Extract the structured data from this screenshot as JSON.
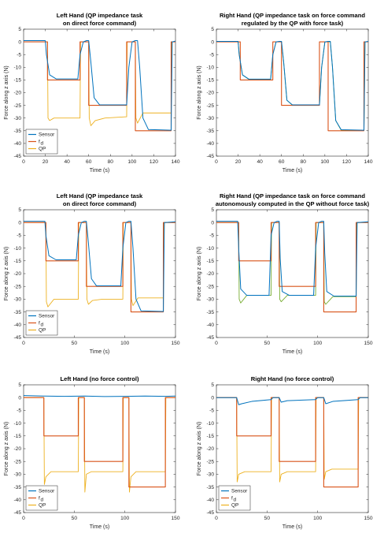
{
  "chart_data": [
    {
      "type": "line",
      "title": "Left Hand (QP impedance task",
      "subtitle": "on direct force command)",
      "xlabel": "Time (s)",
      "ylabel": "Force along z axis (N)",
      "xlim": [
        0,
        140
      ],
      "ylim": [
        -45,
        5
      ],
      "xticks": [
        "0",
        "20",
        "40",
        "60",
        "80",
        "100",
        "120",
        "140"
      ],
      "yticks": [
        "5",
        "0",
        "-5",
        "-10",
        "-15",
        "-20",
        "-25",
        "-30",
        "-35",
        "-40",
        "-45"
      ],
      "grid": false,
      "legend_position": "bottom-left",
      "legend": [
        "Sensor",
        "f",
        "QP"
      ],
      "legend_sub": "d",
      "colors": {
        "sensor": "#0072BD",
        "fd": "#D95319",
        "qp": "#EDB120"
      },
      "series": [
        {
          "name": "Sensor",
          "x": [
            0,
            20,
            21,
            24,
            30,
            50,
            52,
            55,
            58,
            60,
            62,
            65,
            70,
            95,
            97,
            100,
            103,
            105,
            107,
            110,
            115,
            136,
            137,
            140
          ],
          "y": [
            0.5,
            0.5,
            -5,
            -13,
            -14.6,
            -14.6,
            -5,
            0,
            0.5,
            0.5,
            -8,
            -22,
            -24.8,
            -24.8,
            -10,
            0,
            0.5,
            0.5,
            -10,
            -30,
            -34.5,
            -34.8,
            0,
            0.3
          ]
        },
        {
          "name": "f_d",
          "x": [
            0,
            22,
            22,
            52,
            52,
            60,
            60,
            95,
            95,
            103,
            103,
            136,
            136,
            140
          ],
          "y": [
            0,
            0,
            -15,
            -15,
            0,
            0,
            -25,
            -25,
            0,
            0,
            -35,
            -35,
            0,
            0
          ]
        },
        {
          "name": "QP",
          "x": [
            0,
            22,
            22.5,
            24,
            28,
            52,
            52.5,
            60,
            60.5,
            62,
            66,
            75,
            95,
            95.5,
            103,
            103.5,
            105,
            110,
            136,
            136.5,
            140
          ],
          "y": [
            0,
            0,
            -30,
            -31,
            -30,
            -30,
            0,
            0,
            -30,
            -33,
            -31,
            -30,
            -29.5,
            0,
            0,
            -30,
            -32,
            -28,
            -28,
            0,
            0
          ]
        }
      ]
    },
    {
      "type": "line",
      "title": "Right Hand (QP impedance task on force command",
      "subtitle": "regulated by the QP with force task)",
      "xlabel": "Time (s)",
      "ylabel": "Force along z axis (N)",
      "xlim": [
        0,
        140
      ],
      "ylim": [
        -45,
        5
      ],
      "xticks": [
        "0",
        "20",
        "40",
        "60",
        "80",
        "100",
        "120",
        "140"
      ],
      "yticks": [
        "5",
        "0",
        "-5",
        "-10",
        "-15",
        "-20",
        "-25",
        "-30",
        "-35",
        "-40",
        "-45"
      ],
      "grid": false,
      "legend": [],
      "colors": {
        "sensor": "#0072BD",
        "fd": "#D95319",
        "qp": "#77AC30"
      },
      "series": [
        {
          "name": "Sensor",
          "x": [
            0,
            20,
            21,
            24,
            30,
            50,
            52,
            55,
            58,
            60,
            62,
            65,
            70,
            95,
            97,
            100,
            103,
            105,
            107,
            110,
            115,
            136,
            137,
            140
          ],
          "y": [
            0.2,
            0.2,
            -5,
            -13,
            -14.7,
            -14.7,
            -5,
            0,
            0.2,
            0.2,
            -8,
            -23,
            -24.8,
            -24.8,
            -10,
            0,
            0.2,
            0.2,
            -10,
            -31,
            -34.6,
            -34.8,
            0,
            0.2
          ]
        },
        {
          "name": "f_d",
          "x": [
            0,
            22,
            22,
            52,
            52,
            60,
            60,
            95,
            95,
            103,
            103,
            136,
            136,
            140
          ],
          "y": [
            0,
            0,
            -15,
            -15,
            0,
            0,
            -25,
            -25,
            0,
            0,
            -35,
            -35,
            0,
            0
          ]
        },
        {
          "name": "QP",
          "x": [
            0,
            20,
            21,
            24,
            30,
            50,
            52,
            55,
            58,
            60,
            62,
            65,
            70,
            95,
            97,
            100,
            103,
            105,
            107,
            110,
            115,
            136,
            137,
            140
          ],
          "y": [
            0,
            0,
            -5,
            -13,
            -14.8,
            -14.8,
            -5,
            0,
            0,
            0,
            -8,
            -23,
            -24.9,
            -24.9,
            -10,
            0,
            0,
            0,
            -10,
            -31,
            -34.8,
            -34.9,
            0,
            0
          ]
        }
      ]
    },
    {
      "type": "line",
      "title": "Left Hand (QP impedance task",
      "subtitle": "on direct force command)",
      "xlabel": "Time (s)",
      "ylabel": "Force along z axis (N)",
      "xlim": [
        0,
        150
      ],
      "ylim": [
        -45,
        5
      ],
      "xticks": [
        "0",
        "50",
        "100",
        "150"
      ],
      "yticks": [
        "5",
        "0",
        "-5",
        "-10",
        "-15",
        "-20",
        "-25",
        "-30",
        "-35",
        "-40",
        "-45"
      ],
      "grid": false,
      "legend_position": "bottom-left",
      "legend": [
        "Sensor",
        "f",
        "QP"
      ],
      "legend_sub": "d",
      "colors": {
        "sensor": "#0072BD",
        "fd": "#D95319",
        "qp": "#EDB120"
      },
      "series": [
        {
          "name": "Sensor",
          "x": [
            0,
            21,
            22,
            25,
            32,
            52,
            54,
            57,
            60,
            62,
            64,
            67,
            72,
            96,
            98,
            101,
            104,
            106,
            108,
            111,
            116,
            138,
            139,
            150
          ],
          "y": [
            0.5,
            0.5,
            -5,
            -13,
            -14.6,
            -14.6,
            -5,
            0,
            0.5,
            0.5,
            -8,
            -22,
            -24.8,
            -24.8,
            -10,
            0,
            0.5,
            0.5,
            -10,
            -30,
            -34.6,
            -34.8,
            0,
            0.3
          ]
        },
        {
          "name": "f_d",
          "x": [
            0,
            22,
            22,
            54,
            54,
            62,
            62,
            98,
            98,
            106,
            106,
            138,
            138,
            150
          ],
          "y": [
            0,
            0,
            -15,
            -15,
            0,
            0,
            -25,
            -25,
            0,
            0,
            -35,
            -35,
            0,
            0
          ]
        },
        {
          "name": "QP",
          "x": [
            0,
            22,
            22.5,
            24,
            30,
            54,
            54.5,
            62,
            62.5,
            64,
            68,
            78,
            98,
            98.5,
            106,
            106.5,
            108,
            113,
            138,
            138.5,
            150
          ],
          "y": [
            0,
            0,
            -31,
            -33,
            -30,
            -30,
            0,
            0,
            -30,
            -32,
            -30.5,
            -30,
            -30,
            0,
            0,
            -30,
            -32.5,
            -29.5,
            -29.5,
            0,
            0
          ]
        }
      ]
    },
    {
      "type": "line",
      "title": "Right Hand (QP impedance task on force command",
      "subtitle": "autonomously computed in the QP without force task)",
      "xlabel": "Time (s)",
      "ylabel": "Force along z axis (N)",
      "xlim": [
        0,
        150
      ],
      "ylim": [
        -45,
        5
      ],
      "xticks": [
        "0",
        "50",
        "100",
        "150"
      ],
      "yticks": [
        "5",
        "0",
        "-5",
        "-10",
        "-15",
        "-20",
        "-25",
        "-30",
        "-35",
        "-40",
        "-45"
      ],
      "grid": false,
      "legend": [],
      "colors": {
        "sensor": "#0072BD",
        "fd": "#D95319",
        "qp": "#77AC30",
        "qp2": "#EDB120"
      },
      "series": [
        {
          "name": "Sensor",
          "x": [
            0,
            21,
            22,
            24,
            30,
            52,
            54,
            57,
            60,
            62,
            63,
            65,
            72,
            96,
            98,
            101,
            104,
            106,
            107,
            109,
            116,
            138,
            139,
            150
          ],
          "y": [
            0.5,
            0.5,
            -10,
            -26,
            -28.5,
            -28.5,
            -5,
            0,
            0.5,
            0.5,
            -14,
            -27,
            -28.5,
            -28.5,
            -10,
            0,
            0.5,
            0.5,
            -12,
            -27,
            -28.8,
            -28.8,
            0,
            0.3
          ]
        },
        {
          "name": "f_d",
          "x": [
            0,
            22,
            22,
            54,
            54,
            62,
            62,
            98,
            98,
            106,
            106,
            138,
            138,
            150
          ],
          "y": [
            0,
            0,
            -15,
            -15,
            0,
            0,
            -25,
            -25,
            0,
            0,
            -35,
            -35,
            0,
            0
          ]
        },
        {
          "name": "QP",
          "x": [
            0,
            22,
            22.5,
            24,
            30,
            54,
            54.5,
            62,
            62.5,
            64,
            70,
            98,
            98.5,
            106,
            106.5,
            108,
            115,
            138,
            138.5,
            150
          ],
          "y": [
            0,
            0,
            -30,
            -31.5,
            -28.5,
            -28.5,
            0,
            0,
            -30,
            -31,
            -28.5,
            -28.5,
            0,
            0,
            -31,
            -32,
            -29,
            -29,
            0,
            0
          ]
        }
      ]
    },
    {
      "type": "line",
      "title": "Left Hand (no force control)",
      "subtitle": "",
      "xlabel": "Time (s)",
      "ylabel": "Force along z axis (N)",
      "xlim": [
        0,
        150
      ],
      "ylim": [
        -45,
        5
      ],
      "xticks": [
        "0",
        "50",
        "100",
        "150"
      ],
      "yticks": [
        "5",
        "0",
        "-5",
        "-10",
        "-15",
        "-20",
        "-25",
        "-30",
        "-35",
        "-40",
        "-45"
      ],
      "grid": false,
      "legend_position": "bottom-left",
      "legend": [
        "Sensor",
        "f",
        "QP"
      ],
      "legend_sub": "d",
      "colors": {
        "sensor": "#0072BD",
        "fd": "#D95319",
        "qp": "#EDB120"
      },
      "series": [
        {
          "name": "Sensor",
          "x": [
            0,
            20,
            40,
            60,
            80,
            100,
            120,
            140,
            150
          ],
          "y": [
            0.8,
            0.6,
            0.5,
            0.6,
            0.4,
            0.5,
            0.6,
            0.5,
            0.6
          ]
        },
        {
          "name": "f_d",
          "x": [
            0,
            20,
            20,
            54,
            54,
            60,
            60,
            98,
            98,
            104,
            104,
            140,
            140,
            150
          ],
          "y": [
            0,
            0,
            -15,
            -15,
            0,
            0,
            -25,
            -25,
            0,
            0,
            -35,
            -35,
            0,
            0
          ]
        },
        {
          "name": "QP",
          "x": [
            0,
            20,
            20.5,
            22,
            27,
            54,
            54.5,
            60,
            60.5,
            62,
            67,
            98,
            98.5,
            104,
            104.5,
            106,
            111,
            140,
            140.5,
            150
          ],
          "y": [
            0,
            0,
            -34,
            -31,
            -29,
            -29,
            0,
            0,
            -37,
            -30,
            -29,
            -29,
            0,
            0,
            -37,
            -31,
            -29,
            -29,
            0,
            0
          ]
        }
      ]
    },
    {
      "type": "line",
      "title": "Right Hand (no force control)",
      "subtitle": "",
      "xlabel": "Time (s)",
      "ylabel": "Force along z axis (N)",
      "xlim": [
        0,
        150
      ],
      "ylim": [
        -45,
        5
      ],
      "xticks": [
        "0",
        "50",
        "100",
        "150"
      ],
      "yticks": [
        "5",
        "0",
        "-5",
        "-10",
        "-15",
        "-20",
        "-25",
        "-30",
        "-35",
        "-40",
        "-45"
      ],
      "grid": false,
      "legend_position": "bottom-left",
      "legend": [
        "Sensor",
        "f",
        "QP"
      ],
      "legend_sub": "d",
      "colors": {
        "sensor": "#0072BD",
        "fd": "#D95319",
        "qp": "#EDB120"
      },
      "series": [
        {
          "name": "Sensor",
          "x": [
            0,
            20,
            22,
            25,
            35,
            54,
            56,
            60,
            62,
            64,
            70,
            98,
            100,
            104,
            106,
            108,
            115,
            140,
            142,
            150
          ],
          "y": [
            0,
            0,
            -2.8,
            -2.4,
            -1.5,
            -0.8,
            0,
            0,
            0,
            -1.8,
            -1.2,
            -0.8,
            0,
            0,
            0,
            -2.4,
            -1.5,
            -0.8,
            0,
            0
          ]
        },
        {
          "name": "f_d",
          "x": [
            0,
            20,
            20,
            54,
            54,
            62,
            62,
            98,
            98,
            106,
            106,
            140,
            140,
            150
          ],
          "y": [
            0,
            0,
            -15,
            -15,
            0,
            0,
            -25,
            -25,
            0,
            0,
            -35,
            -35,
            0,
            0
          ]
        },
        {
          "name": "QP",
          "x": [
            0,
            20,
            20.5,
            22,
            28,
            54,
            54.5,
            62,
            62.5,
            64,
            70,
            98,
            98.5,
            106,
            106.5,
            108,
            114,
            140,
            140.5,
            150
          ],
          "y": [
            0,
            0,
            -33,
            -30,
            -29,
            -29,
            0,
            0,
            -33,
            -30,
            -29,
            -29,
            0,
            0,
            -32,
            -29,
            -28,
            -28,
            0,
            0
          ]
        }
      ]
    }
  ]
}
